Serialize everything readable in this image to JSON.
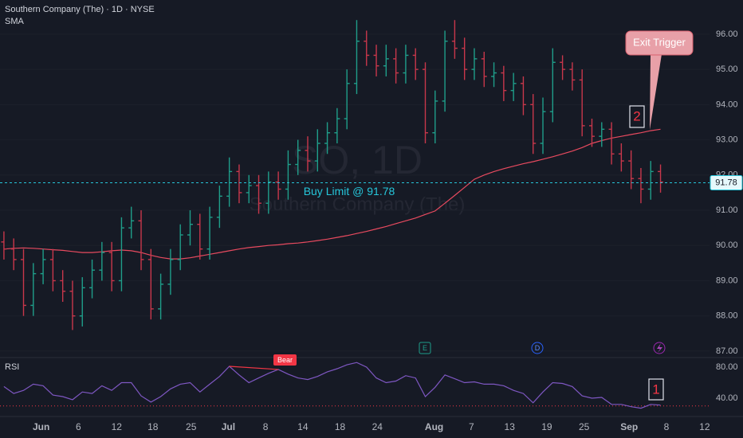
{
  "chart_data": [
    {
      "type": "ohlc",
      "title": "Southern Company (The) · 1D · NYSE",
      "watermark": [
        "SO, 1D",
        "Southern Company (The)"
      ],
      "open": [
        90.1,
        89.9,
        89.6,
        88.3,
        89.2,
        89.6,
        89.0,
        88.7,
        88.0,
        88.8,
        89.3,
        89.8,
        89.0,
        90.5,
        90.7,
        89.6,
        88.2,
        88.9,
        89.6,
        90.3,
        90.6,
        89.9,
        90.8,
        91.4,
        92.1,
        91.5,
        91.7,
        91.2,
        91.8,
        91.6,
        92.3,
        92.7,
        92.4,
        92.9,
        93.2,
        93.6,
        94.6,
        95.8,
        95.4,
        95.1,
        95.3,
        94.9,
        95.4,
        95.0,
        93.2,
        94.1,
        95.8,
        95.6,
        95.0,
        95.3,
        94.8,
        94.9,
        94.4,
        94.6,
        94.0,
        92.9,
        93.8,
        95.2,
        95.0,
        94.7,
        93.4,
        93.1,
        93.3,
        92.6,
        92.4,
        91.9,
        91.6,
        92.1
      ],
      "high": [
        90.4,
        90.2,
        89.9,
        89.5,
        89.9,
        89.9,
        89.3,
        89.0,
        89.1,
        89.6,
        90.1,
        90.1,
        90.8,
        91.1,
        91.0,
        89.9,
        89.2,
        89.9,
        90.6,
        91.0,
        90.9,
        91.1,
        91.7,
        92.5,
        92.3,
        92.0,
        92.0,
        92.1,
        92.1,
        92.7,
        93.0,
        93.1,
        93.3,
        93.5,
        93.9,
        95.0,
        96.4,
        96.1,
        95.7,
        95.7,
        95.6,
        95.7,
        95.6,
        95.2,
        94.4,
        96.1,
        96.4,
        95.9,
        95.6,
        95.5,
        95.2,
        95.1,
        94.9,
        94.8,
        94.3,
        94.2,
        95.6,
        95.4,
        95.2,
        95.0,
        93.6,
        93.5,
        93.5,
        92.9,
        92.7,
        92.2,
        92.4,
        92.3
      ],
      "low": [
        89.6,
        89.3,
        88.0,
        88.0,
        88.9,
        88.7,
        88.4,
        87.6,
        87.7,
        88.5,
        89.0,
        88.7,
        88.7,
        90.2,
        89.3,
        87.9,
        87.9,
        88.6,
        89.3,
        90.0,
        89.6,
        89.6,
        90.5,
        91.1,
        91.2,
        91.2,
        90.9,
        90.9,
        91.3,
        91.3,
        92.0,
        92.1,
        92.1,
        92.6,
        92.9,
        93.3,
        94.3,
        95.1,
        94.8,
        94.8,
        94.6,
        94.6,
        94.7,
        92.9,
        92.9,
        93.8,
        95.3,
        94.7,
        94.7,
        94.5,
        94.5,
        94.1,
        94.1,
        93.7,
        92.6,
        92.6,
        93.5,
        94.7,
        94.4,
        93.1,
        92.8,
        92.8,
        92.3,
        92.1,
        91.6,
        91.2,
        91.3,
        91.5
      ],
      "close": [
        89.9,
        89.6,
        88.3,
        89.2,
        89.6,
        89.0,
        88.7,
        88.0,
        88.8,
        89.3,
        89.8,
        89.0,
        90.5,
        90.7,
        89.6,
        88.2,
        88.9,
        89.6,
        90.3,
        90.6,
        89.9,
        90.8,
        91.4,
        92.1,
        91.5,
        91.7,
        91.2,
        91.8,
        91.6,
        92.3,
        92.7,
        92.4,
        92.9,
        93.2,
        93.6,
        94.6,
        95.8,
        95.4,
        95.1,
        95.3,
        94.9,
        95.4,
        95.0,
        93.2,
        94.1,
        95.8,
        95.6,
        95.0,
        95.3,
        94.8,
        94.9,
        94.4,
        94.6,
        94.0,
        92.9,
        93.8,
        95.2,
        95.0,
        94.7,
        93.4,
        93.1,
        93.3,
        92.6,
        92.4,
        91.9,
        91.6,
        92.1,
        91.8
      ],
      "up_color": "#1f9e8a",
      "down_color": "#c8374b",
      "series": [
        {
          "name": "SMA",
          "color": "#e84a5f",
          "values": [
            89.9,
            89.92,
            89.93,
            89.92,
            89.9,
            89.88,
            89.86,
            89.83,
            89.8,
            89.8,
            89.82,
            89.85,
            89.87,
            89.85,
            89.8,
            89.72,
            89.66,
            89.62,
            89.62,
            89.65,
            89.7,
            89.75,
            89.8,
            89.85,
            89.9,
            89.94,
            89.97,
            90.0,
            90.02,
            90.05,
            90.07,
            90.1,
            90.14,
            90.18,
            90.23,
            90.28,
            90.34,
            90.4,
            90.47,
            90.54,
            90.62,
            90.7,
            90.78,
            90.88,
            90.98,
            91.2,
            91.42,
            91.65,
            91.88,
            92.0,
            92.1,
            92.18,
            92.25,
            92.32,
            92.38,
            92.45,
            92.52,
            92.6,
            92.68,
            92.78,
            92.9,
            92.98,
            93.05,
            93.1,
            93.15,
            93.2,
            93.26,
            93.3
          ]
        }
      ],
      "buy_limit": {
        "value": 91.78,
        "label": "Buy Limit @ 91.78",
        "color": "#26c6da"
      },
      "annotations": [
        "2",
        "Exit Trigger",
        "E",
        "D"
      ],
      "xlim": [
        -0.4,
        72
      ],
      "xticks": [
        {
          "value": 3.8,
          "label": "Jun"
        },
        {
          "value": 7.6,
          "label": "6"
        },
        {
          "value": 11.5,
          "label": "12"
        },
        {
          "value": 15.2,
          "label": "18"
        },
        {
          "value": 19.1,
          "label": "25"
        },
        {
          "value": 22.9,
          "label": "Jul"
        },
        {
          "value": 26.7,
          "label": "8"
        },
        {
          "value": 30.5,
          "label": "14"
        },
        {
          "value": 34.3,
          "label": "18"
        },
        {
          "value": 38.1,
          "label": "24"
        },
        {
          "value": 43.9,
          "label": "Aug"
        },
        {
          "value": 47.7,
          "label": "7"
        },
        {
          "value": 51.6,
          "label": "13"
        },
        {
          "value": 55.4,
          "label": "19"
        },
        {
          "value": 59.2,
          "label": "25"
        },
        {
          "value": 63.8,
          "label": "Sep"
        },
        {
          "value": 67.6,
          "label": "8"
        },
        {
          "value": 71.5,
          "label": "12"
        }
      ],
      "ylim": [
        86.84,
        96.97
      ],
      "yticks": [
        {
          "value": 87,
          "label": "87.00"
        },
        {
          "value": 88,
          "label": "88.00"
        },
        {
          "value": 89,
          "label": "89.00"
        },
        {
          "value": 90,
          "label": "90.00"
        },
        {
          "value": 91,
          "label": "91.00"
        },
        {
          "value": 92,
          "label": "92.00"
        },
        {
          "value": 93,
          "label": "93.00"
        },
        {
          "value": 94,
          "label": "94.00"
        },
        {
          "value": 95,
          "label": "95.00"
        },
        {
          "value": 96,
          "label": "96.00"
        }
      ],
      "grid": true
    },
    {
      "type": "line",
      "series": [
        {
          "name": "RSI",
          "color": "#7e57c2",
          "values": [
            55,
            46,
            50,
            58,
            56,
            44,
            42,
            38,
            48,
            46,
            56,
            50,
            60,
            60,
            43,
            35,
            42,
            52,
            58,
            60,
            48,
            58,
            68,
            81,
            70,
            60,
            66,
            72,
            77,
            71,
            66,
            64,
            68,
            74,
            78,
            83,
            86,
            80,
            66,
            60,
            62,
            69,
            66,
            42,
            54,
            70,
            65,
            60,
            61,
            58,
            58,
            56,
            50,
            46,
            34,
            48,
            60,
            59,
            55,
            43,
            40,
            41,
            32,
            32,
            29,
            27,
            32,
            31
          ]
        }
      ],
      "level": {
        "value": 30,
        "color": "#f23645"
      },
      "annotations": [
        "Bear",
        "1"
      ],
      "ylim": [
        17.4,
        91.3
      ],
      "yticks": [
        {
          "value": 80,
          "label": "80.00"
        },
        {
          "value": 40,
          "label": "40.00"
        }
      ]
    }
  ]
}
